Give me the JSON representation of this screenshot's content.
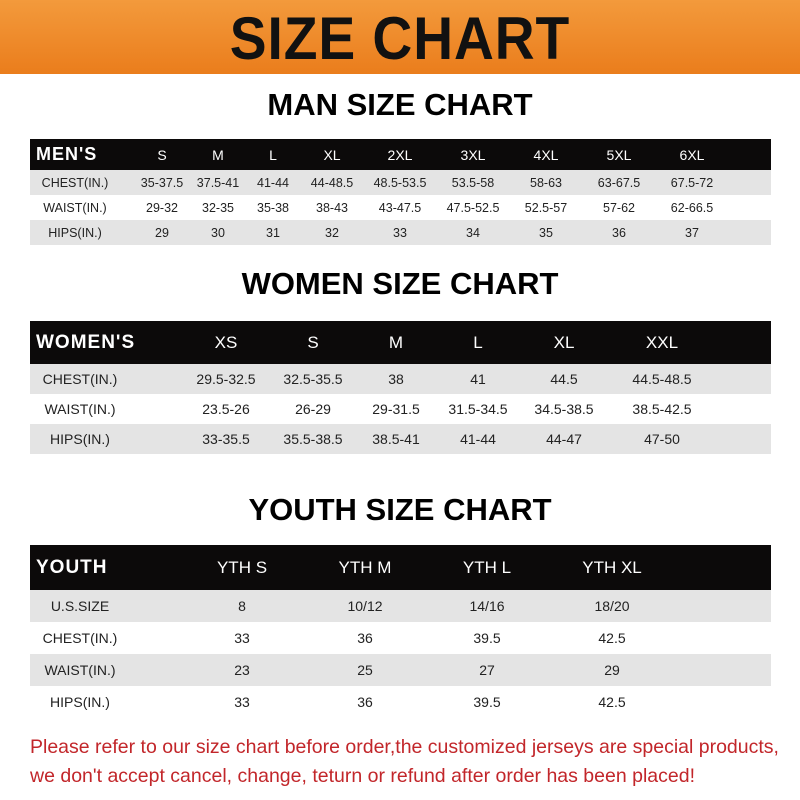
{
  "banner_title": "SIZE CHART",
  "men": {
    "title": "MAN SIZE CHART",
    "header": [
      "MEN'S",
      "S",
      "M",
      "L",
      "XL",
      "2XL",
      "3XL",
      "4XL",
      "5XL",
      "6XL"
    ],
    "rows": [
      [
        "CHEST(IN.)",
        "35-37.5",
        "37.5-41",
        "41-44",
        "44-48.5",
        "48.5-53.5",
        "53.5-58",
        "58-63",
        "63-67.5",
        "67.5-72"
      ],
      [
        "WAIST(IN.)",
        "29-32",
        "32-35",
        "35-38",
        "38-43",
        "43-47.5",
        "47.5-52.5",
        "52.5-57",
        "57-62",
        "62-66.5"
      ],
      [
        "HIPS(IN.)",
        "29",
        "30",
        "31",
        "32",
        "33",
        "34",
        "35",
        "36",
        "37"
      ]
    ]
  },
  "women": {
    "title": "WOMEN SIZE CHART",
    "header": [
      "WOMEN'S",
      "XS",
      "S",
      "M",
      "L",
      "XL",
      "XXL"
    ],
    "rows": [
      [
        "CHEST(IN.)",
        "29.5-32.5",
        "32.5-35.5",
        "38",
        "41",
        "44.5",
        "44.5-48.5"
      ],
      [
        "WAIST(IN.)",
        "23.5-26",
        "26-29",
        "29-31.5",
        "31.5-34.5",
        "34.5-38.5",
        "38.5-42.5"
      ],
      [
        "HIPS(IN.)",
        "33-35.5",
        "35.5-38.5",
        "38.5-41",
        "41-44",
        "44-47",
        "47-50"
      ]
    ]
  },
  "youth": {
    "title": "YOUTH SIZE CHART",
    "header": [
      "YOUTH",
      "YTH S",
      "YTH M",
      "YTH L",
      "YTH XL"
    ],
    "rows": [
      [
        "U.S.SIZE",
        "8",
        "10/12",
        "14/16",
        "18/20"
      ],
      [
        "CHEST(IN.)",
        "33",
        "36",
        "39.5",
        "42.5"
      ],
      [
        "WAIST(IN.)",
        "23",
        "25",
        "27",
        "29"
      ],
      [
        "HIPS(IN.)",
        "33",
        "36",
        "39.5",
        "42.5"
      ]
    ]
  },
  "footer": {
    "line1": "Please refer to our size chart before order,the customized jerseys are special products,",
    "line2": "we don't accept cancel, change, teturn or refund after order has been placed!"
  },
  "colors": {
    "banner": "#ee8a2a",
    "header_row": "#0c0a0a",
    "stripe": "#e4e4e4",
    "footer_text": "#c2262a"
  }
}
